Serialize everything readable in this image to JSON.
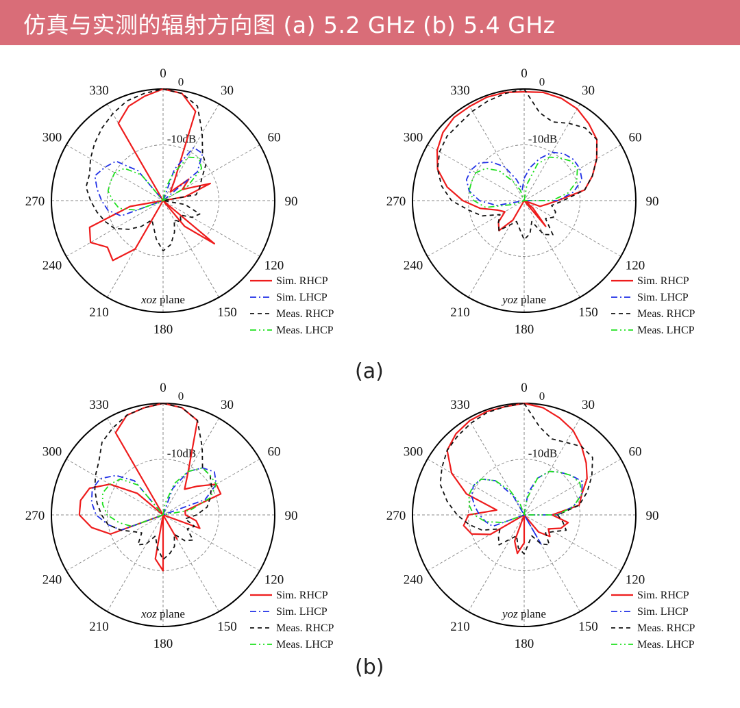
{
  "banner": {
    "title": "仿真与实测的辐射方向图 (a) 5.2 GHz (b) 5.4 GHz"
  },
  "captions": {
    "a": "(a)",
    "b": "(b)"
  },
  "chart_data": [
    {
      "type": "polar-line",
      "group": "a",
      "plane_pre": "xoz",
      "plane_post": " plane",
      "angle_ticks": [
        "0",
        "30",
        "60",
        "90",
        "120",
        "150",
        "180",
        "210",
        "240",
        "270",
        "300",
        "330"
      ],
      "ring_labels": [
        "0",
        "-10dB"
      ],
      "r_range_dB": [
        -20,
        0
      ],
      "grid": true,
      "series": [
        {
          "name": "Sim. RHCP",
          "color": "#ee1c1c",
          "dash": "",
          "r": [
            0,
            -0.5,
            -3,
            -16,
            -18,
            -14,
            -16,
            -11,
            -16,
            -20,
            -20,
            -20,
            -20,
            -8,
            -14,
            -20,
            -20,
            -20,
            -20,
            -20,
            -20,
            -10,
            -6,
            -7,
            -5,
            -6,
            -14,
            -20,
            -20,
            -20,
            -20,
            -20,
            -20,
            -4,
            -2,
            -1
          ]
        },
        {
          "name": "Sim. LHCP",
          "color": "#1f2fe6",
          "dash": "9 4 2 4",
          "r": [
            -20,
            -20,
            -14,
            -9,
            -9,
            -12,
            -20,
            -20,
            -20,
            -20,
            -20,
            -20,
            -20,
            -20,
            -20,
            -20,
            -20,
            -20,
            -20,
            -20,
            -20,
            -20,
            -20,
            -20,
            -20,
            -12,
            -10,
            -9,
            -8,
            -7,
            -8,
            -9,
            -13,
            -20,
            -20,
            -20
          ]
        },
        {
          "name": "Meas. RHCP",
          "color": "#111111",
          "dash": "6 5",
          "r": [
            0,
            -0.5,
            -2,
            -6,
            -9,
            -10,
            -12,
            -13,
            -14,
            -20,
            -16,
            -13,
            -14,
            -16,
            -15,
            -16,
            -14,
            -12,
            -11,
            -13,
            -15,
            -16,
            -14,
            -12,
            -10,
            -9,
            -8,
            -7,
            -6,
            -6,
            -5,
            -4,
            -3,
            -2,
            -1,
            -0.5
          ]
        },
        {
          "name": "Meas. LHCP",
          "color": "#1fe01f",
          "dash": "9 4 2 4 2 4",
          "r": [
            -20,
            -18,
            -15,
            -11,
            -10,
            -11,
            -15,
            -20,
            -20,
            -20,
            -20,
            -20,
            -20,
            -20,
            -20,
            -20,
            -20,
            -20,
            -20,
            -20,
            -20,
            -20,
            -20,
            -20,
            -20,
            -15,
            -12,
            -11,
            -10,
            -10,
            -10,
            -11,
            -14,
            -20,
            -20,
            -20
          ]
        }
      ]
    },
    {
      "type": "polar-line",
      "group": "a",
      "plane_pre": "yoz",
      "plane_post": " plane",
      "angle_ticks": [
        "0",
        "30",
        "60",
        "90",
        "120",
        "150",
        "180",
        "210",
        "240",
        "270",
        "300",
        "330"
      ],
      "ring_labels": [
        "0",
        "-10dB"
      ],
      "r_range_dB": [
        -20,
        0
      ],
      "grid": true,
      "series": [
        {
          "name": "Sim. RHCP",
          "color": "#ee1c1c",
          "dash": "",
          "r": [
            -0.5,
            -0.3,
            -0.5,
            -1,
            -2,
            -3,
            -5,
            -7,
            -9,
            -14,
            -16,
            -17,
            -20,
            -18,
            -14,
            -20,
            -20,
            -20,
            -20,
            -20,
            -20,
            -16,
            -13,
            -14,
            -16,
            -15,
            -12,
            -9,
            -6,
            -3.5,
            -2,
            -1,
            -0.5,
            -0.5,
            -0.3,
            -0.3
          ]
        },
        {
          "name": "Sim. LHCP",
          "color": "#1f2fe6",
          "dash": "9 4 2 4",
          "r": [
            -16,
            -14,
            -12,
            -10,
            -9,
            -8.5,
            -8.5,
            -9,
            -11,
            -14,
            -20,
            -20,
            -20,
            -20,
            -20,
            -20,
            -20,
            -20,
            -20,
            -20,
            -20,
            -20,
            -20,
            -20,
            -20,
            -20,
            -15,
            -12,
            -10,
            -9,
            -9,
            -9.5,
            -11,
            -13,
            -16,
            -18
          ]
        },
        {
          "name": "Meas. RHCP",
          "color": "#111111",
          "dash": "6 5",
          "r": [
            0,
            -4,
            -5,
            -4,
            -3,
            -3,
            -5,
            -7,
            -9,
            -13,
            -15,
            -14,
            -14,
            -15,
            -12,
            -13,
            -16,
            -14,
            -13,
            -15,
            -16,
            -15,
            -13,
            -14,
            -15,
            -12,
            -10,
            -7,
            -5,
            -3.5,
            -2.5,
            -2,
            -2,
            -1.5,
            -1,
            -0.5
          ]
        },
        {
          "name": "Meas. LHCP",
          "color": "#1fe01f",
          "dash": "9 4 2 4 2 4",
          "r": [
            -20,
            -17,
            -13,
            -11,
            -10,
            -9,
            -9,
            -10,
            -12,
            -15,
            -20,
            -20,
            -20,
            -20,
            -20,
            -20,
            -20,
            -20,
            -20,
            -20,
            -20,
            -20,
            -20,
            -20,
            -20,
            -18,
            -13,
            -11,
            -10,
            -10,
            -10,
            -11,
            -13,
            -16,
            -18,
            -20
          ]
        }
      ]
    },
    {
      "type": "polar-line",
      "group": "b",
      "plane_pre": "xoz",
      "plane_post": " plane",
      "angle_ticks": [
        "0",
        "30",
        "60",
        "90",
        "120",
        "150",
        "180",
        "210",
        "240",
        "270",
        "300",
        "330"
      ],
      "ring_labels": [
        "0",
        "-10dB"
      ],
      "r_range_dB": [
        -20,
        0
      ],
      "grid": true,
      "series": [
        {
          "name": "Sim. RHCP",
          "color": "#ee1c1c",
          "dash": "",
          "r": [
            0,
            -0.5,
            -2,
            -11,
            -14,
            -12,
            -9,
            -9,
            -16,
            -16,
            -14,
            -13,
            -20,
            -20,
            -20,
            -15,
            -20,
            -20,
            -10,
            -12,
            -20,
            -20,
            -20,
            -20,
            -20,
            -10,
            -7,
            -5,
            -5,
            -6,
            -9,
            -14,
            -20,
            -3,
            -1,
            -0.5
          ]
        },
        {
          "name": "Sim. LHCP",
          "color": "#1f2fe6",
          "dash": "9 4 2 4",
          "r": [
            -20,
            -20,
            -15,
            -11,
            -9,
            -8,
            -9,
            -12,
            -20,
            -20,
            -20,
            -20,
            -20,
            -20,
            -20,
            -20,
            -20,
            -20,
            -20,
            -20,
            -20,
            -20,
            -20,
            -20,
            -20,
            -12,
            -10,
            -8,
            -7,
            -6.5,
            -7,
            -9,
            -12,
            -20,
            -20,
            -20
          ]
        },
        {
          "name": "Meas. RHCP",
          "color": "#111111",
          "dash": "6 5",
          "r": [
            0,
            -0.5,
            -2,
            -6,
            -9,
            -9,
            -10,
            -11,
            -12,
            -14,
            -16,
            -14,
            -15,
            -13,
            -14,
            -16,
            -14,
            -13,
            -12,
            -14,
            -16,
            -14,
            -13,
            -15,
            -14,
            -12,
            -10,
            -9,
            -8,
            -7,
            -6,
            -5,
            -3,
            -2,
            -1,
            -0.5
          ]
        },
        {
          "name": "Meas. LHCP",
          "color": "#1fe01f",
          "dash": "9 4 2 4 2 4",
          "r": [
            -20,
            -18,
            -14,
            -11,
            -9,
            -9,
            -9,
            -11,
            -15,
            -20,
            -20,
            -20,
            -20,
            -20,
            -20,
            -20,
            -20,
            -20,
            -20,
            -20,
            -20,
            -20,
            -20,
            -20,
            -20,
            -14,
            -12,
            -10,
            -9,
            -8.5,
            -9,
            -10,
            -13,
            -20,
            -20,
            -20
          ]
        }
      ]
    },
    {
      "type": "polar-line",
      "group": "b",
      "plane_pre": "yoz",
      "plane_post": " plane",
      "angle_ticks": [
        "0",
        "30",
        "60",
        "90",
        "120",
        "150",
        "180",
        "210",
        "240",
        "270",
        "300",
        "330"
      ],
      "ring_labels": [
        "0",
        "-10dB"
      ],
      "r_range_dB": [
        -20,
        0
      ],
      "grid": true,
      "series": [
        {
          "name": "Sim. RHCP",
          "color": "#ee1c1c",
          "dash": "",
          "r": [
            0,
            -0.5,
            -1.5,
            -2.5,
            -4,
            -5.5,
            -7,
            -9,
            -10,
            -15,
            -12,
            -13,
            -15,
            -14,
            -16,
            -20,
            -20,
            -20,
            -15,
            -13,
            -15,
            -20,
            -20,
            -20,
            -13,
            -10,
            -9,
            -10,
            -15,
            -9,
            -5,
            -2,
            -1,
            -0.5,
            -0.3,
            -0.3
          ]
        },
        {
          "name": "Sim. LHCP",
          "color": "#1f2fe6",
          "dash": "9 4 2 4",
          "r": [
            -20,
            -16,
            -13,
            -11,
            -10,
            -9,
            -8,
            -9,
            -11,
            -14,
            -20,
            -20,
            -20,
            -20,
            -20,
            -14,
            -20,
            -20,
            -20,
            -20,
            -20,
            -20,
            -20,
            -20,
            -20,
            -14,
            -13,
            -12,
            -11,
            -10,
            -9.5,
            -10,
            -12,
            -16,
            -20,
            -20
          ]
        },
        {
          "name": "Meas. RHCP",
          "color": "#111111",
          "dash": "6 5",
          "r": [
            0,
            -4,
            -5.5,
            -5,
            -4,
            -4,
            -6,
            -8,
            -10,
            -14,
            -13,
            -12,
            -14,
            -15,
            -13,
            -14,
            -16,
            -15,
            -13,
            -14,
            -16,
            -15,
            -13,
            -14,
            -15,
            -12,
            -10,
            -8,
            -6,
            -4,
            -3,
            -2,
            -1.5,
            -1,
            -0.5,
            -0.3
          ]
        },
        {
          "name": "Meas. LHCP",
          "color": "#1fe01f",
          "dash": "9 4 2 4 2 4",
          "r": [
            -20,
            -17,
            -13,
            -11,
            -10,
            -9,
            -8.5,
            -9,
            -11,
            -14,
            -20,
            -20,
            -20,
            -20,
            -20,
            -20,
            -20,
            -20,
            -20,
            -20,
            -20,
            -20,
            -20,
            -20,
            -20,
            -16,
            -13,
            -11,
            -10,
            -9.5,
            -9.5,
            -10,
            -12,
            -15,
            -18,
            -20
          ]
        }
      ]
    }
  ]
}
